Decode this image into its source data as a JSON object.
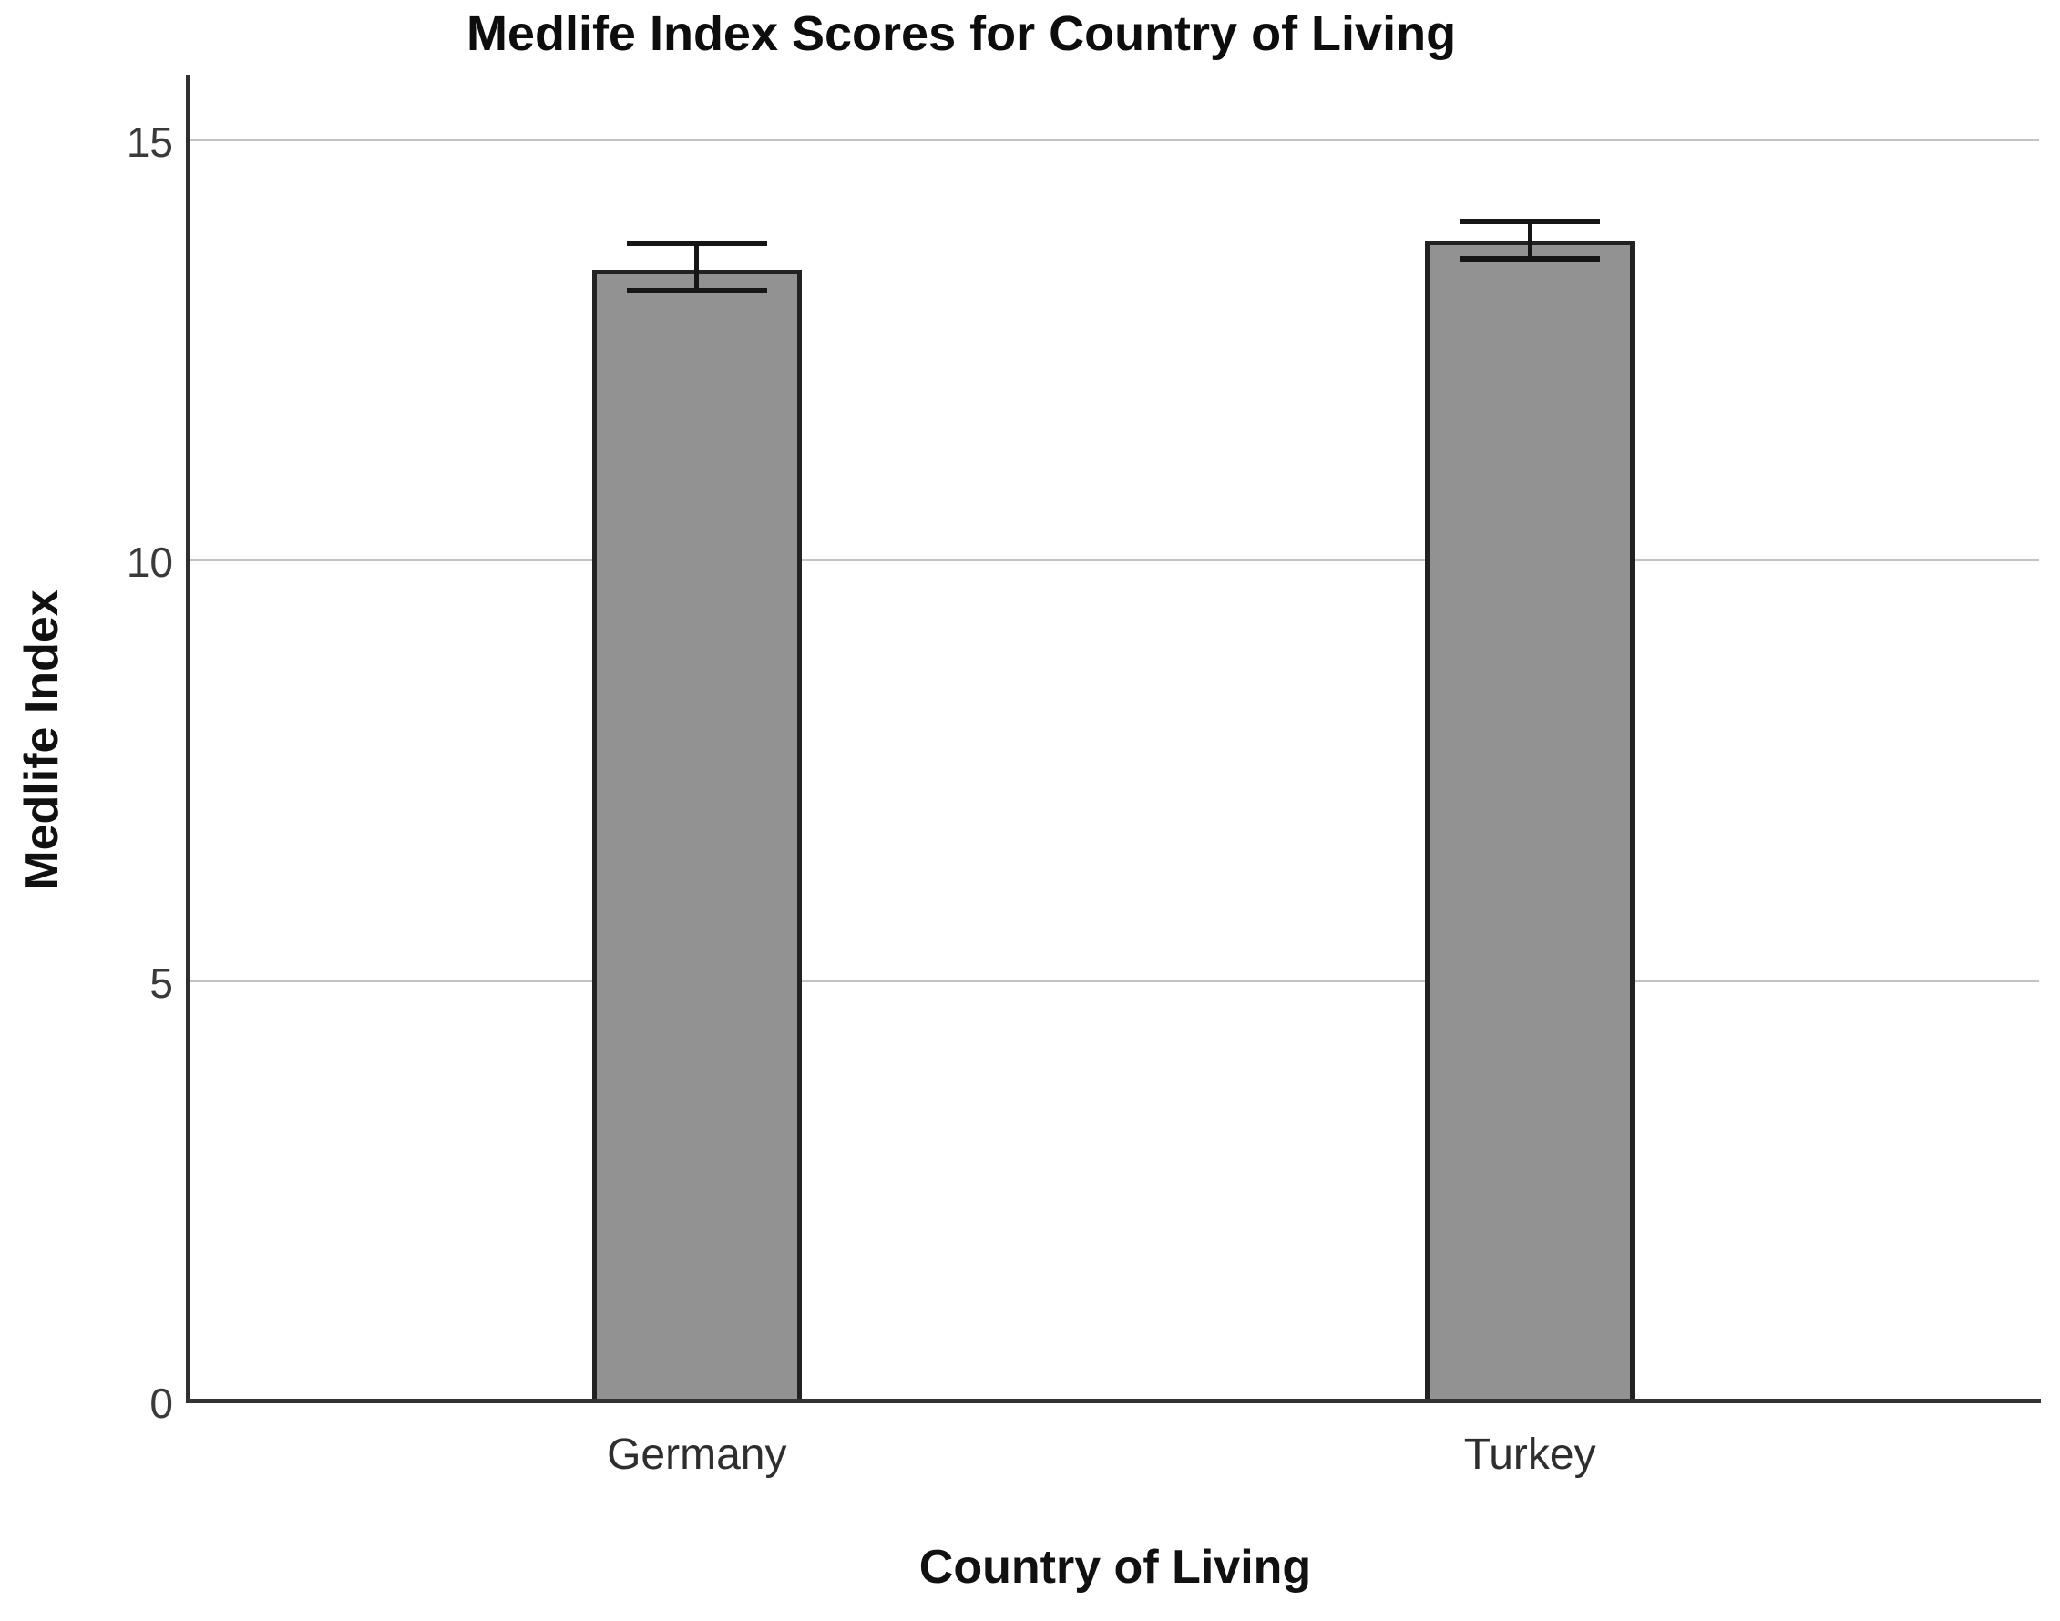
{
  "chart_data": {
    "type": "bar",
    "title": "Medlife Index Scores for Country of Living",
    "xlabel": "Country of Living",
    "ylabel": "Medlife Index",
    "categories": [
      "Germany",
      "Turkey"
    ],
    "values": [
      13.45,
      13.8
    ],
    "error_low": [
      13.2,
      13.58
    ],
    "error_high": [
      13.76,
      14.02
    ],
    "yticks": [
      0,
      5,
      10,
      15
    ],
    "ylim": [
      0,
      15
    ],
    "grid": "horizontal gridlines at y ticks",
    "legend": "none",
    "colors": {
      "bar_fill": "#929292",
      "bar_border": "#222222",
      "error_bar": "#161616",
      "gridline": "#c3c3c3",
      "axis_line": "#303030",
      "background": "#ffffff",
      "text": "#111111"
    }
  }
}
